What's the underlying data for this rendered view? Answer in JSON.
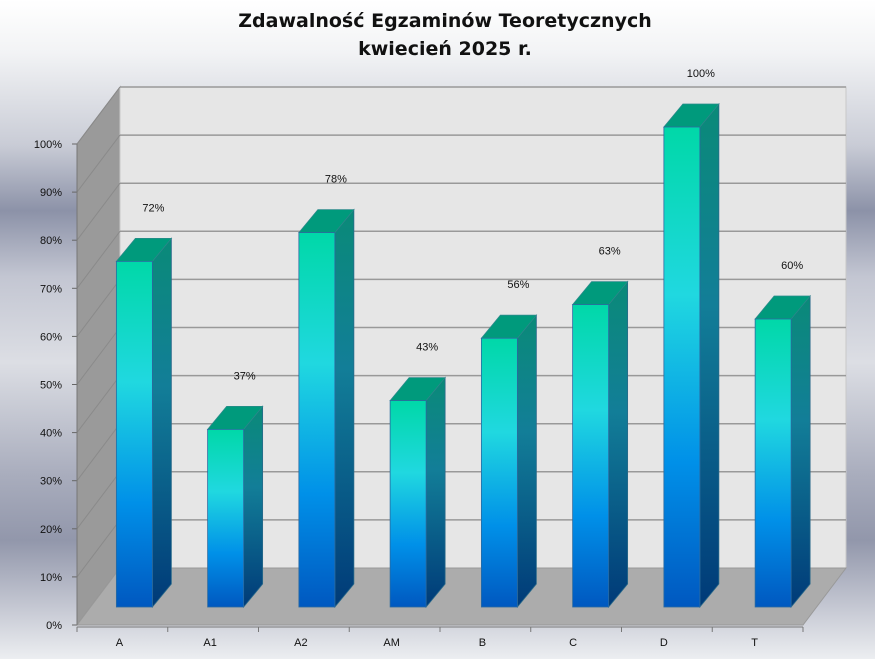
{
  "chart_data": {
    "type": "bar",
    "title": "Zdawalność Egzaminów Teoretycznych",
    "subtitle": "kwiecień 2025 r.",
    "categories": [
      "A",
      "A1",
      "A2",
      "AM",
      "B",
      "C",
      "D",
      "T"
    ],
    "values": [
      72,
      37,
      78,
      43,
      56,
      63,
      100,
      60
    ],
    "data_labels": [
      "72%",
      "37%",
      "78%",
      "43%",
      "56%",
      "63%",
      "100%",
      "60%"
    ],
    "yticks": [
      "0%",
      "10%",
      "20%",
      "30%",
      "40%",
      "50%",
      "60%",
      "70%",
      "80%",
      "90%",
      "100%"
    ],
    "ylim": [
      0,
      100
    ],
    "xlabel": "",
    "ylabel": "",
    "grid": true,
    "legend": "none",
    "colors": {
      "bar_top": "#00d8a8",
      "bar_mid": "#20d8e0",
      "bar_bottom": "#0060c8",
      "wall": "#e6e6e6",
      "floor": "#acacac",
      "side_wall": "#9a9a9a"
    }
  }
}
